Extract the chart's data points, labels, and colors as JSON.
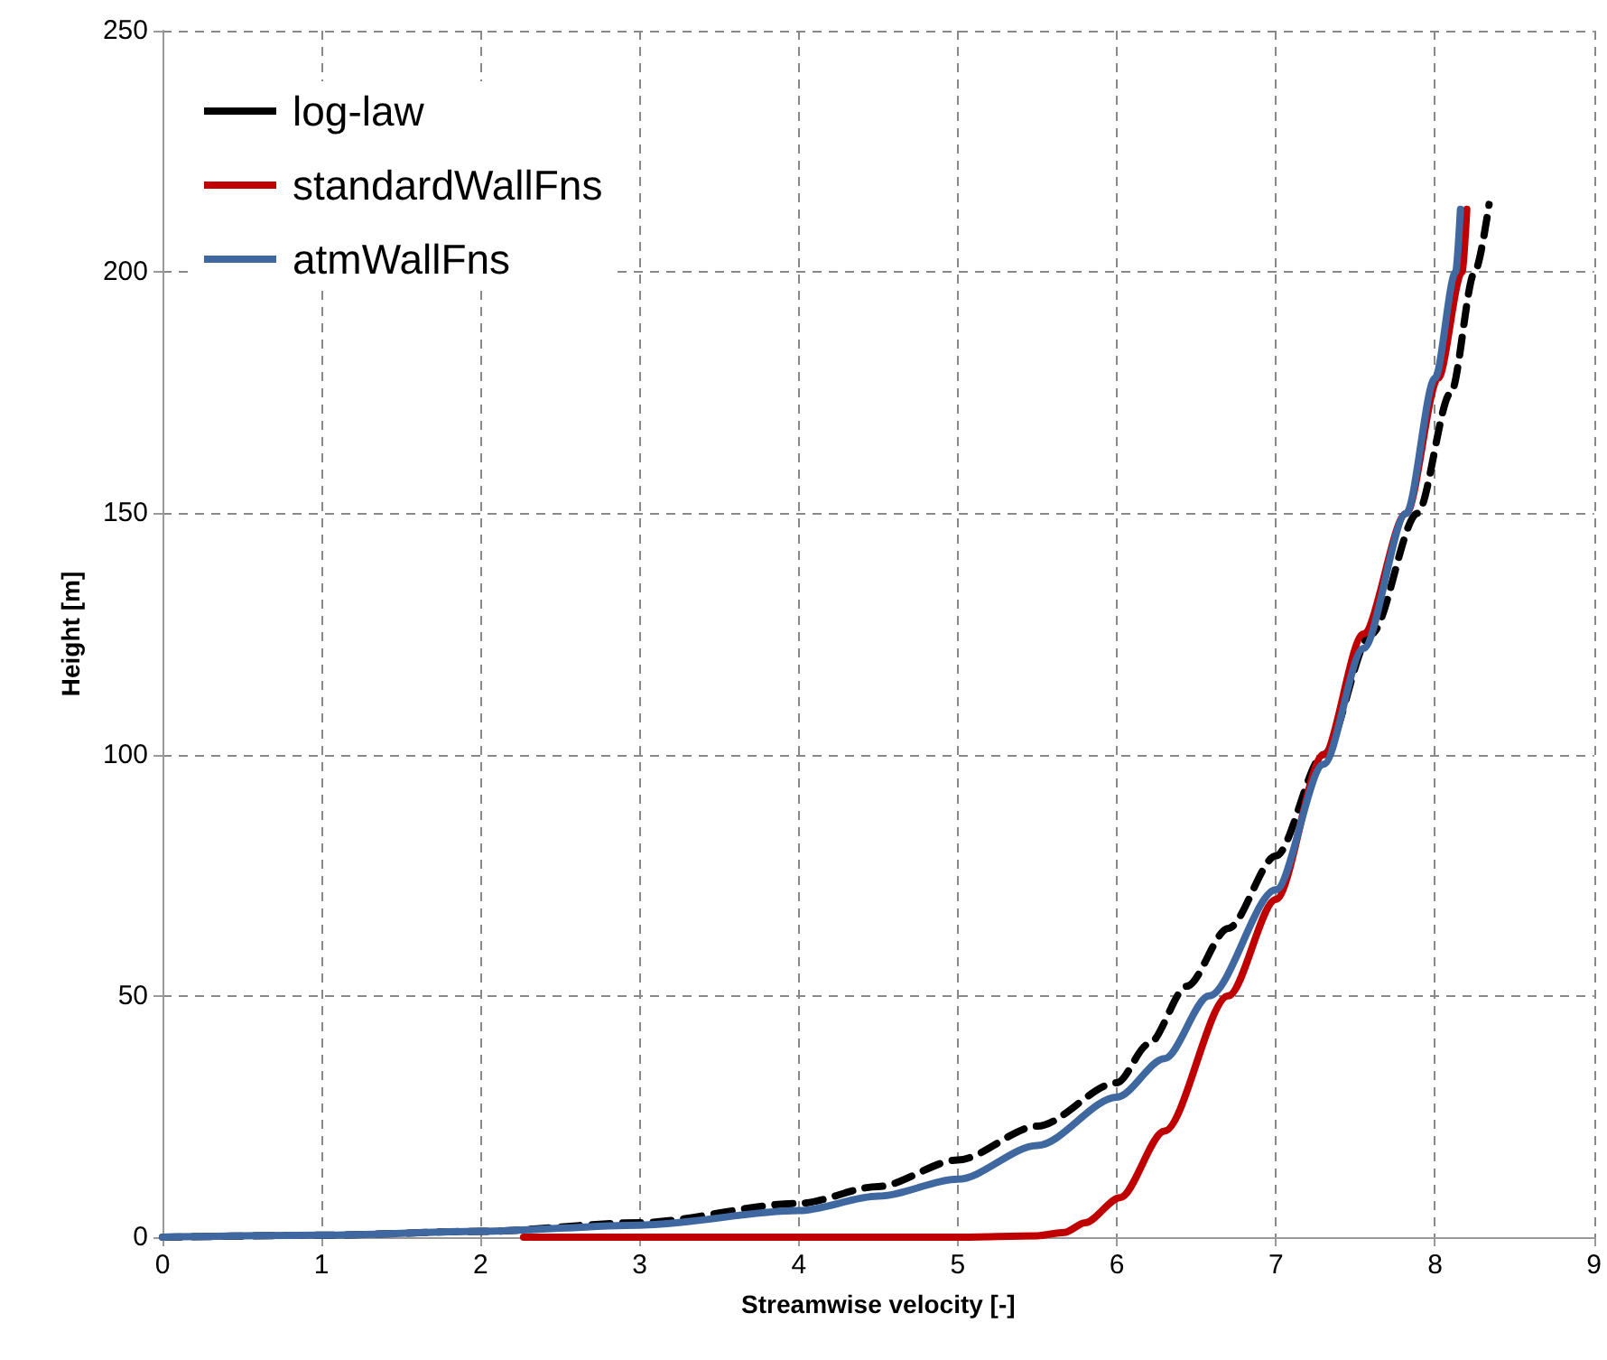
{
  "chart_data": {
    "type": "line",
    "xlabel": "Streamwise velocity [-]",
    "ylabel": "Height [m]",
    "xlim": [
      0,
      9
    ],
    "xticks": [
      0,
      1,
      2,
      3,
      4,
      5,
      6,
      7,
      8,
      9
    ],
    "ylim": [
      0,
      250
    ],
    "yticks": [
      0,
      50,
      100,
      150,
      200,
      250
    ],
    "grid": true,
    "legend": "top left",
    "marker": "none",
    "series": [
      {
        "name": "log-law",
        "color": "#000000",
        "line_style": "dashed",
        "x": [
          0,
          1,
          2,
          3,
          4,
          4.5,
          5,
          5.5,
          6,
          6.2,
          6.44,
          6.7,
          7,
          7.3,
          7.6,
          7.89,
          8.1,
          8.25,
          8.34
        ],
        "values": [
          0,
          0.4,
          1.2,
          3,
          7,
          10.5,
          16,
          23,
          32,
          40,
          52,
          64,
          79,
          100,
          125,
          150,
          175,
          200,
          214
        ]
      },
      {
        "name": "standardWallFns",
        "color": "#c00000",
        "line_style": "solid",
        "x": [
          2.27,
          3,
          4,
          5,
          5.5,
          5.67,
          5.8,
          6.02,
          6.3,
          6.7,
          7,
          7.3,
          7.55,
          7.82,
          8.02,
          8.17,
          8.2
        ],
        "values": [
          0,
          0,
          0,
          0,
          0.3,
          1,
          3,
          8.2,
          22,
          50,
          70,
          100,
          125,
          150,
          178,
          200,
          213
        ]
      },
      {
        "name": "atmWallFns",
        "color": "#3f67a0",
        "line_style": "solid",
        "x": [
          0,
          1,
          2,
          3,
          4,
          4.5,
          5,
          5.5,
          6,
          6.3,
          6.58,
          7,
          7.3,
          7.55,
          7.82,
          8,
          8.13,
          8.16
        ],
        "values": [
          0,
          0.4,
          1.2,
          2.5,
          5.5,
          8.5,
          12,
          19,
          29,
          37,
          50,
          72,
          98,
          122,
          150,
          178,
          200,
          213
        ]
      }
    ]
  }
}
